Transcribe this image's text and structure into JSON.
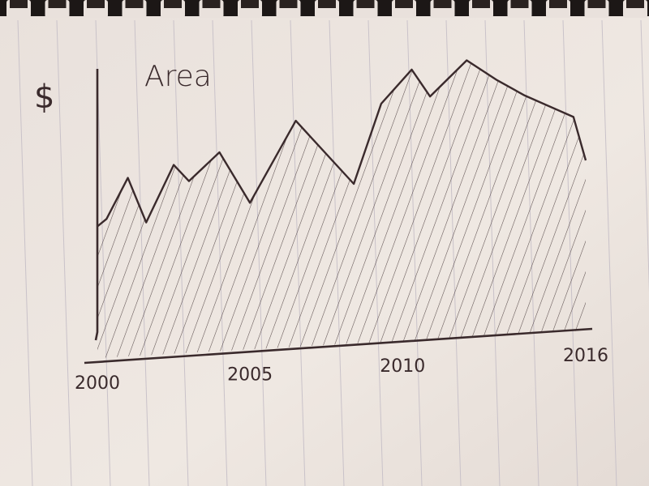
{
  "chart_data": {
    "type": "area",
    "title": "Area",
    "ylabel": "$",
    "xlabel": "",
    "x_ticks": [
      "2000",
      "2005",
      "2010",
      "2016"
    ],
    "x": [
      2000,
      2000.3,
      2001,
      2001.6,
      2002.5,
      2003,
      2004,
      2005,
      2006.5,
      2008.4,
      2009.3,
      2010.3,
      2010.9,
      2012.1,
      2013.1,
      2014,
      2015.6,
      2016
    ],
    "values": [
      5.5,
      5.8,
      7.5,
      5.6,
      8.0,
      7.3,
      8.5,
      6.3,
      9.8,
      7.0,
      10.5,
      12.0,
      10.8,
      12.4,
      11.5,
      10.8,
      9.8,
      7.8
    ],
    "xlim": [
      2000,
      2016
    ],
    "ylim": [
      0,
      13
    ],
    "fill": "hatched",
    "grid": false,
    "colors": {
      "ink": "#3a2a2c",
      "paper": "#ece5df",
      "background": "#2a2220"
    }
  }
}
